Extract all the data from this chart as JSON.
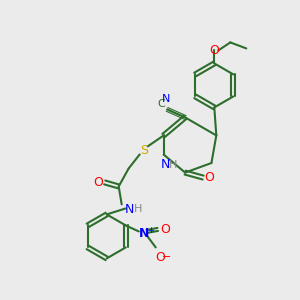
{
  "bg_color": "#ebebeb",
  "bond_color": "#2d6e2d",
  "bond_width": 1.5,
  "atom_colors": {
    "N": "#0000ff",
    "O": "#ff0000",
    "S": "#ccaa00",
    "C_label": "#2d6e2d",
    "H": "#888888"
  },
  "font_size": 8,
  "font_size_small": 7
}
